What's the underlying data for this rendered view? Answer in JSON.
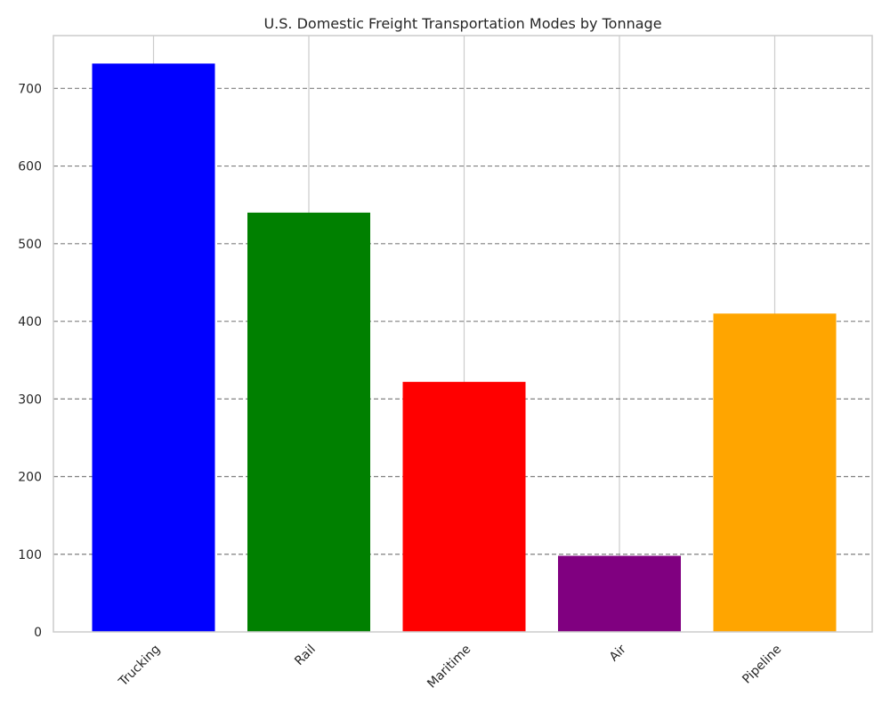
{
  "chart_data": {
    "type": "bar",
    "title": "U.S. Domestic Freight Transportation Modes by Tonnage",
    "xlabel": "",
    "ylabel": "",
    "categories": [
      "Trucking",
      "Rail",
      "Maritime",
      "Air",
      "Pipeline"
    ],
    "values": [
      732,
      540,
      322,
      98,
      410
    ],
    "colors": [
      "#0000ff",
      "#008000",
      "#ff0000",
      "#800080",
      "#ffa500"
    ],
    "ylim": [
      0,
      768
    ],
    "yticks": [
      "0",
      "100",
      "200",
      "300",
      "400",
      "500",
      "600",
      "700"
    ],
    "grid": true,
    "legend": "none"
  }
}
